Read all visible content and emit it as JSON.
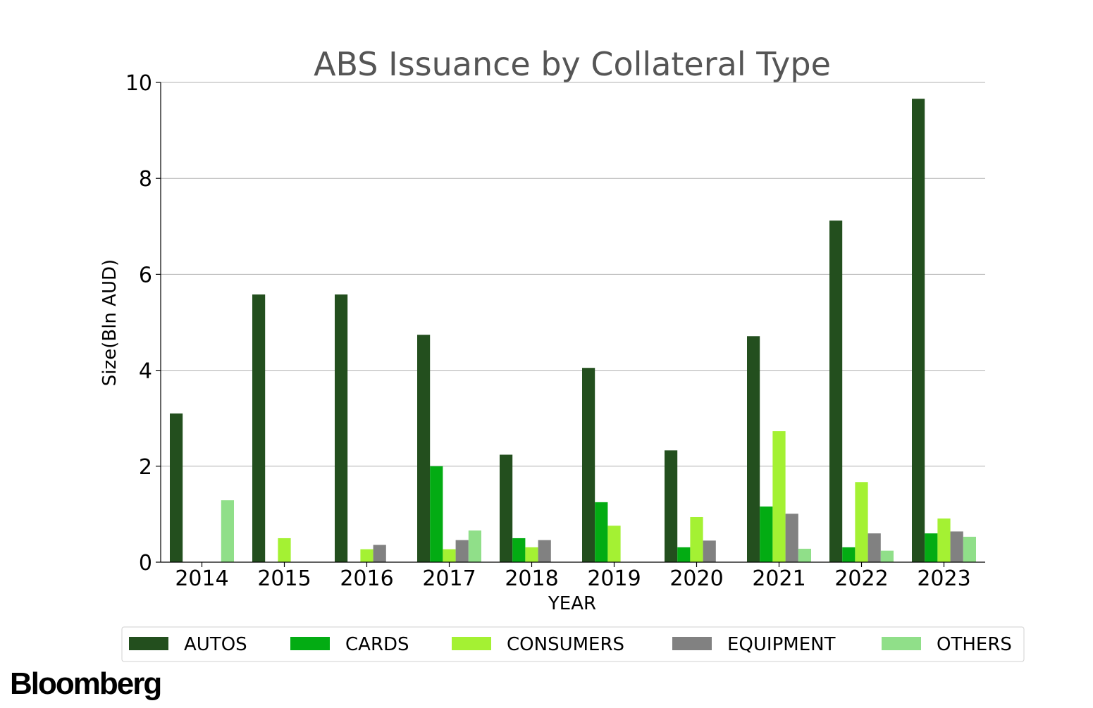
{
  "chart_data": {
    "type": "bar",
    "title": "ABS Issuance by Collateral Type",
    "xlabel": "YEAR",
    "ylabel": "Size(Bln AUD)",
    "ylim": [
      0,
      10
    ],
    "yticks": [
      "0",
      "2",
      "4",
      "6",
      "8",
      "10"
    ],
    "grid": "horizontal",
    "legend_position": "bottom",
    "categories": [
      "2014",
      "2015",
      "2016",
      "2017",
      "2018",
      "2019",
      "2020",
      "2021",
      "2022",
      "2023"
    ],
    "series": [
      {
        "name": "AUTOS",
        "color": "#234f1e",
        "values": [
          3.1,
          5.58,
          5.58,
          4.74,
          2.24,
          4.05,
          2.33,
          4.71,
          7.12,
          9.66
        ]
      },
      {
        "name": "CARDS",
        "color": "#03ac13",
        "values": [
          0,
          0,
          0,
          2.0,
          0.5,
          1.25,
          0.31,
          1.16,
          0.31,
          0.6
        ]
      },
      {
        "name": "CONSUMERS",
        "color": "#a4f133",
        "values": [
          0,
          0.5,
          0.27,
          0.27,
          0.31,
          0.76,
          0.94,
          2.73,
          1.67,
          0.91
        ]
      },
      {
        "name": "EQUIPMENT",
        "color": "#818181",
        "values": [
          0,
          0,
          0.36,
          0.46,
          0.46,
          0,
          0.45,
          1.01,
          0.6,
          0.64
        ]
      },
      {
        "name": "OTHERS",
        "color": "#90df89",
        "values": [
          1.29,
          0,
          0,
          0.66,
          0,
          0,
          0,
          0.28,
          0.24,
          0.53
        ]
      }
    ]
  },
  "branding": {
    "logo_text": "Bloomberg"
  }
}
